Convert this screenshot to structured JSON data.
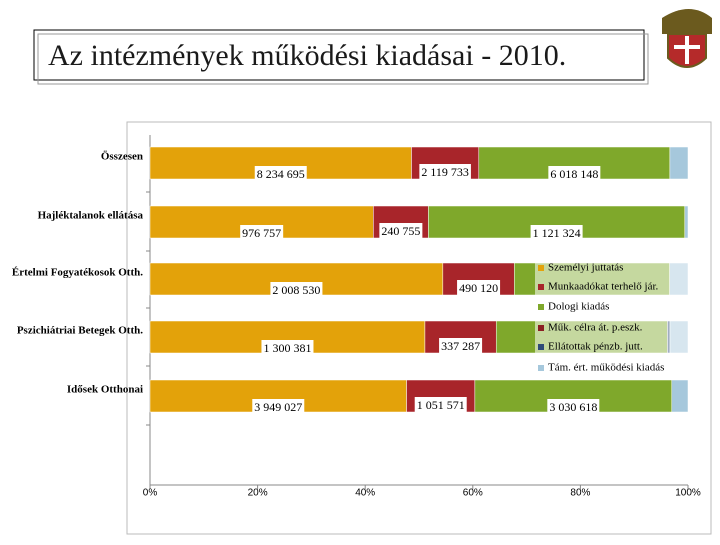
{
  "header": {
    "title": "Az intézmények működési kiadásai - 2010."
  },
  "chart_data": {
    "type": "stacked-bar-100",
    "categories": [
      "Összesen",
      "Hajléktalanok ellátása",
      "Értelmi Fogyatékosok Otth.",
      "Pszichiátriai Betegek Otth.",
      "Idősek Otthonai"
    ],
    "series": [
      {
        "name": "Személyi juttatás",
        "color": "#E3A20A",
        "values": [
          8234695,
          976757,
          2008530,
          1300381,
          3949027
        ],
        "value_labels": [
          "8 234 695",
          "976 757",
          "2 008 530",
          "1 300 381",
          "3 949 027"
        ]
      },
      {
        "name": "Munkaadókat terhelő jár.",
        "color": "#A8252A",
        "values": [
          2119733,
          240755,
          490120,
          337287,
          1051571
        ],
        "value_labels": [
          "2 119 733",
          "240 755",
          "490 120",
          "337 287",
          "1 051 571"
        ]
      },
      {
        "name": "Dologi kiadás",
        "color": "#7FA82B",
        "values": [
          6018148,
          1121324,
          1065353,
          810000,
          3030618
        ],
        "value_labels": [
          "6 018 148",
          "1 121 324",
          null,
          null,
          "3 030 618"
        ]
      },
      {
        "name": "Műk. célra át. p.eszk.",
        "color": "#8B1E22",
        "values": [
          0,
          0,
          0,
          0,
          0
        ]
      },
      {
        "name": "Ellátottak pénzb. jutt.",
        "color": "#2E4A78",
        "values": [
          0,
          0,
          0,
          12000,
          0
        ]
      },
      {
        "name": "Tám. ért. működési kiadás",
        "color": "#A6C8DC",
        "values": [
          570000,
          14000,
          126000,
          85000,
          250000
        ]
      }
    ],
    "xlim": [
      0,
      100
    ],
    "xticks": [
      {
        "value": 0,
        "label": "0%"
      },
      {
        "value": 20,
        "label": "20%"
      },
      {
        "value": 40,
        "label": "40%"
      },
      {
        "value": 60,
        "label": "60%"
      },
      {
        "value": 80,
        "label": "80%"
      },
      {
        "value": 100,
        "label": "100%"
      }
    ]
  }
}
